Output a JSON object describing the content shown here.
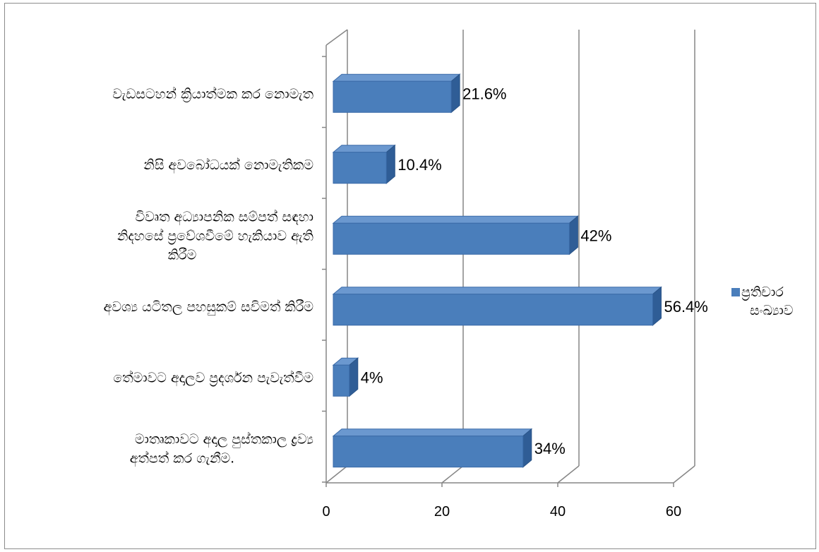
{
  "chart_data": {
    "type": "bar",
    "orientation": "horizontal",
    "style": "3d",
    "categories": [
      [
        "වැඩසටහන් ක්‍රියාත්මක කර නොමැත"
      ],
      [
        "නිසි අවබෝධයක් නොමැතිකම"
      ],
      [
        "විවෘත අධ්‍යාපනික සම්පත් සඳහා",
        "නිදහසේ ප්‍රවේශවීමේ හැකියාව ඇති",
        "කිරීම"
      ],
      [
        "අවශ්‍ය යටිතල පහසුකම් සවිමත් කිරීම"
      ],
      [
        "තේමාවට අදාලව ප්‍රදර්ශන පැවැත්වීම"
      ],
      [
        "මාතෘකාවට අදාල පුස්තකාල ද්‍රව්‍ය",
        "අත්පත් කර ගැනීම."
      ]
    ],
    "series": [
      {
        "name": "ප්‍රතිචාර සංඛ්‍යාව",
        "values": [
          21.6,
          10.4,
          42,
          56.4,
          4,
          34
        ],
        "data_labels": [
          "21.6%",
          "10.4%",
          "42%",
          "56.4%",
          "4%",
          "34%"
        ],
        "color": "#4a7ebb"
      }
    ],
    "legend": {
      "lines": [
        "ප්‍රතිචාර",
        "සංඛ්‍යාව"
      ],
      "placement": "right"
    },
    "xaxis": {
      "ticks": [
        0,
        20,
        40,
        60
      ]
    },
    "xlim": [
      0,
      60
    ],
    "grid": true,
    "title": "",
    "xlabel": "",
    "ylabel": ""
  }
}
